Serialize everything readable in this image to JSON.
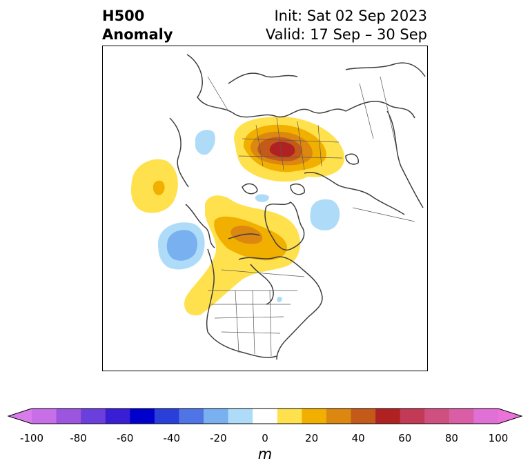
{
  "header": {
    "title_line1": "H500",
    "title_line2": "Anomaly",
    "init_text": "Init: Sat 02 Sep 2023",
    "valid_text": "Valid: 17 Sep – 30 Sep"
  },
  "map": {
    "projection": "north-polar-stereographic",
    "region": "North America / Arctic",
    "anomaly_features": [
      {
        "sign": "positive",
        "level_m": 60,
        "location": "Northern Siberia / Kara Sea"
      },
      {
        "sign": "positive",
        "level_m": 40,
        "location": "Northern Canada / Hudson Bay"
      },
      {
        "sign": "positive",
        "level_m": 20,
        "location": "Western North America"
      },
      {
        "sign": "positive",
        "level_m": 20,
        "location": "Central North Pacific"
      },
      {
        "sign": "negative",
        "level_m": -30,
        "location": "Gulf of Alaska"
      },
      {
        "sign": "negative",
        "level_m": -20,
        "location": "Greenland Sea / Scandinavia"
      },
      {
        "sign": "negative",
        "level_m": -20,
        "location": "Central Asia"
      }
    ]
  },
  "colorbar": {
    "unit": "m",
    "ticks": [
      "-100",
      "-80",
      "-60",
      "-40",
      "-20",
      "0",
      "20",
      "40",
      "60",
      "80",
      "100"
    ],
    "colors": [
      "#c86ee6",
      "#9b55de",
      "#6b3fdc",
      "#3a1ed6",
      "#0000cd",
      "#2a3fd9",
      "#4f74e5",
      "#78b0f0",
      "#aedcf8",
      "#ffffff",
      "#ffe14d",
      "#f1b000",
      "#dc8710",
      "#c45a1a",
      "#b02222",
      "#c23a55",
      "#cf5080",
      "#d95ea5",
      "#e070d6"
    ],
    "under_color": "#d77ce9",
    "over_color": "#ea72d9"
  }
}
